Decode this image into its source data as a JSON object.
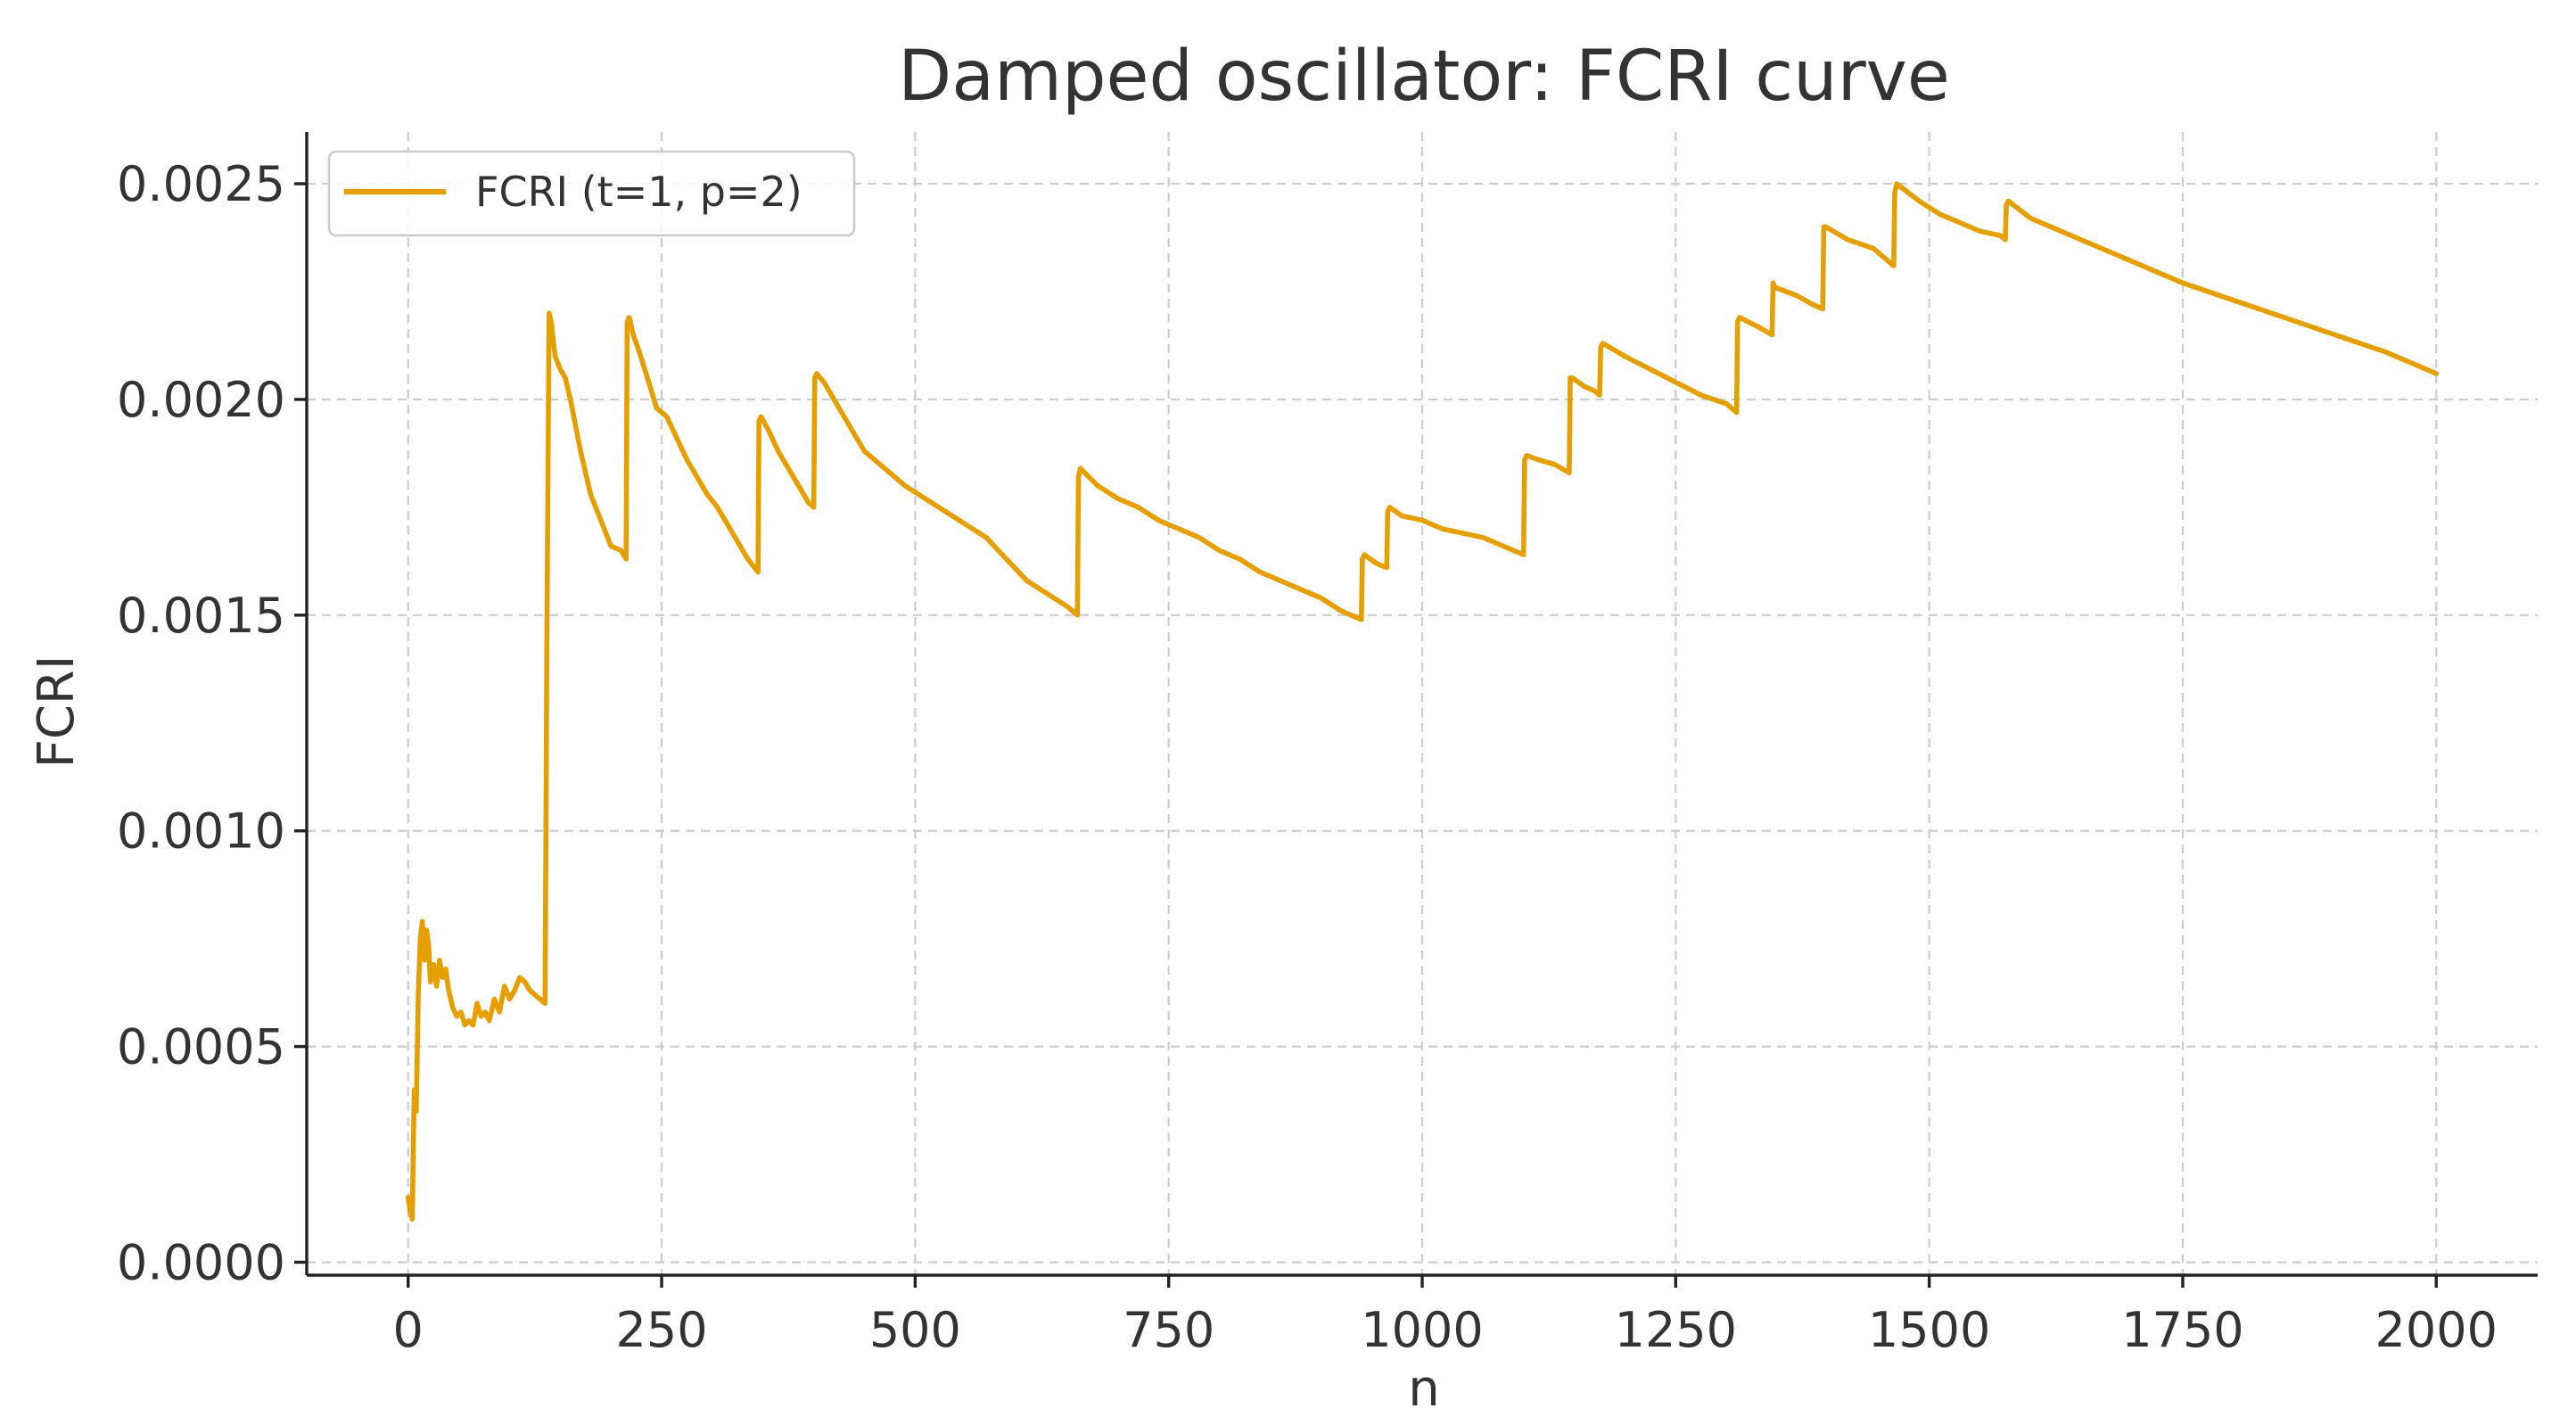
{
  "chart_data": {
    "type": "line",
    "title": "Damped oscillator: FCRI curve",
    "xlabel": "n",
    "ylabel": "FCRI",
    "xlim": [
      -100,
      2100
    ],
    "ylim": [
      -3e-05,
      0.00262
    ],
    "xticks": [
      0,
      250,
      500,
      750,
      1000,
      1250,
      1500,
      1750,
      2000
    ],
    "xtick_labels": [
      "0",
      "250",
      "500",
      "750",
      "1000",
      "1250",
      "1500",
      "1750",
      "2000"
    ],
    "yticks": [
      0,
      0.0005,
      0.001,
      0.0015,
      0.002,
      0.0025
    ],
    "ytick_labels": [
      "0.0000",
      "0.0005",
      "0.0010",
      "0.0015",
      "0.0020",
      "0.0025"
    ],
    "grid": true,
    "legend_position": "top-left",
    "series": [
      {
        "name": "FCRI (t=1, p=2)",
        "color": "#E69F00",
        "x": [
          0,
          2,
          4,
          6,
          8,
          10,
          12,
          14,
          16,
          18,
          20,
          22,
          25,
          28,
          31,
          34,
          37,
          40,
          44,
          48,
          52,
          56,
          60,
          64,
          68,
          72,
          76,
          80,
          85,
          90,
          95,
          100,
          105,
          110,
          115,
          120,
          125,
          130,
          135,
          137,
          139,
          141,
          145,
          150,
          155,
          160,
          170,
          180,
          190,
          200,
          210,
          215,
          216,
          218,
          222,
          228,
          236,
          245,
          255,
          265,
          275,
          285,
          295,
          305,
          315,
          325,
          335,
          345,
          346,
          348,
          355,
          365,
          375,
          385,
          395,
          400,
          401,
          403,
          410,
          420,
          435,
          450,
          470,
          490,
          510,
          530,
          550,
          570,
          590,
          610,
          630,
          650,
          660,
          661,
          663,
          680,
          700,
          720,
          740,
          760,
          780,
          800,
          820,
          840,
          860,
          880,
          900,
          920,
          940,
          941,
          943,
          955,
          965,
          966,
          968,
          980,
          1000,
          1020,
          1040,
          1060,
          1080,
          1100,
          1101,
          1103,
          1115,
          1130,
          1145,
          1146,
          1148,
          1160,
          1170,
          1175,
          1176,
          1178,
          1200,
          1225,
          1250,
          1275,
          1300,
          1310,
          1311,
          1313,
          1330,
          1345,
          1346,
          1348,
          1370,
          1385,
          1395,
          1396,
          1398,
          1420,
          1445,
          1465,
          1466,
          1468,
          1490,
          1510,
          1530,
          1550,
          1570,
          1575,
          1576,
          1578,
          1600,
          1650,
          1700,
          1750,
          1800,
          1850,
          1900,
          1950,
          2000
        ],
        "y": [
          0.00015,
          0.00012,
          0.0001,
          0.0004,
          0.00035,
          0.00062,
          0.00075,
          0.00079,
          0.0007,
          0.00077,
          0.00074,
          0.00065,
          0.00069,
          0.00064,
          0.0007,
          0.00066,
          0.00068,
          0.00063,
          0.00059,
          0.00057,
          0.00058,
          0.00055,
          0.00056,
          0.00055,
          0.0006,
          0.00057,
          0.00058,
          0.00056,
          0.00061,
          0.00058,
          0.00064,
          0.00061,
          0.00063,
          0.00066,
          0.00065,
          0.00063,
          0.00062,
          0.00061,
          0.0006,
          0.0015,
          0.0022,
          0.00218,
          0.0021,
          0.00207,
          0.00205,
          0.002,
          0.00188,
          0.00178,
          0.00172,
          0.00166,
          0.00165,
          0.00163,
          0.00218,
          0.00219,
          0.00215,
          0.00211,
          0.00205,
          0.00198,
          0.00196,
          0.00191,
          0.00186,
          0.00182,
          0.00178,
          0.00175,
          0.00171,
          0.00167,
          0.00163,
          0.0016,
          0.00195,
          0.00196,
          0.00193,
          0.00188,
          0.00184,
          0.0018,
          0.00176,
          0.00175,
          0.00205,
          0.00206,
          0.00204,
          0.002,
          0.00194,
          0.00188,
          0.00184,
          0.0018,
          0.00177,
          0.00174,
          0.00171,
          0.00168,
          0.00163,
          0.00158,
          0.00155,
          0.00152,
          0.0015,
          0.00182,
          0.00184,
          0.0018,
          0.00177,
          0.00175,
          0.00172,
          0.0017,
          0.00168,
          0.00165,
          0.00163,
          0.0016,
          0.00158,
          0.00156,
          0.00154,
          0.00151,
          0.00149,
          0.00163,
          0.00164,
          0.00162,
          0.00161,
          0.00174,
          0.00175,
          0.00173,
          0.00172,
          0.0017,
          0.00169,
          0.00168,
          0.00166,
          0.00164,
          0.00186,
          0.00187,
          0.00186,
          0.00185,
          0.00183,
          0.00205,
          0.00205,
          0.00203,
          0.00202,
          0.00201,
          0.00212,
          0.00213,
          0.0021,
          0.00207,
          0.00204,
          0.00201,
          0.00199,
          0.00197,
          0.00218,
          0.00219,
          0.00217,
          0.00215,
          0.00227,
          0.00226,
          0.00224,
          0.00222,
          0.00221,
          0.0024,
          0.0024,
          0.00237,
          0.00235,
          0.00231,
          0.00248,
          0.0025,
          0.00246,
          0.00243,
          0.00241,
          0.00239,
          0.00238,
          0.00237,
          0.00245,
          0.00246,
          0.00242,
          0.00237,
          0.00232,
          0.00227,
          0.00223,
          0.00219,
          0.00215,
          0.00211,
          0.00206
        ]
      }
    ]
  }
}
